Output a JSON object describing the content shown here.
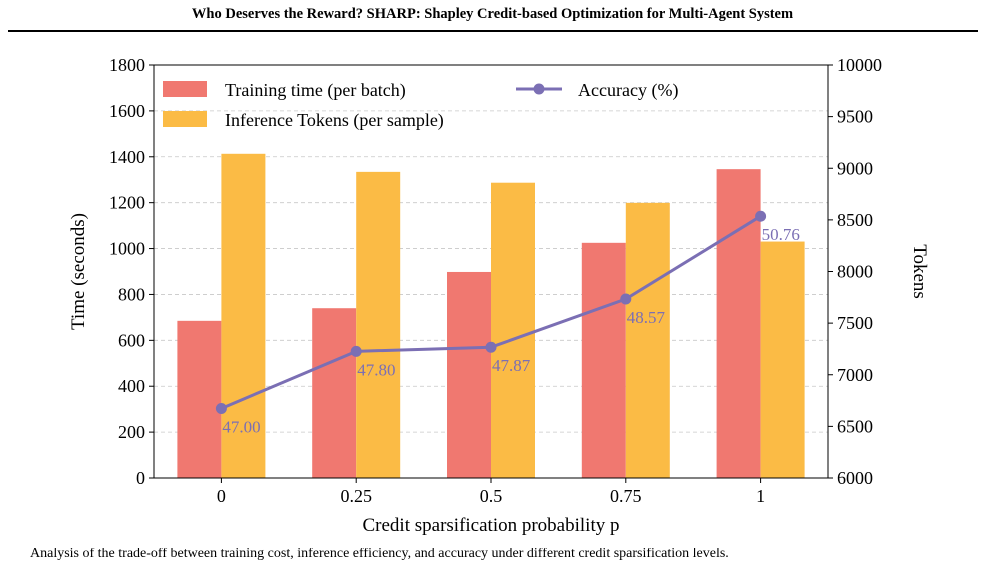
{
  "header": {
    "title": "Who Deserves the Reward? SHARP: Shapley Credit-based Optimization for Multi-Agent System"
  },
  "caption": {
    "text": "Analysis of the trade-off between training cost, inference efficiency, and accuracy under different credit sparsification levels."
  },
  "chart_data": {
    "type": "bar",
    "categories": [
      "0",
      "0.25",
      "0.5",
      "0.75",
      "1"
    ],
    "xlabel": "Credit sparsification probability p",
    "ylabel": "Time (seconds)",
    "y2label": "Tokens",
    "ylim": [
      0,
      1800
    ],
    "y2lim": [
      6000,
      10000
    ],
    "yticks": [
      0,
      200,
      400,
      600,
      800,
      1000,
      1200,
      1400,
      1600,
      1800
    ],
    "y2ticks": [
      6000,
      6500,
      7000,
      7500,
      8000,
      8500,
      9000,
      9500,
      10000
    ],
    "grid": "horizontal dashed",
    "legend_position": "top",
    "series": [
      {
        "name": "Training time (per batch)",
        "kind": "bar",
        "axis": "left",
        "color": "#F07870",
        "values": [
          685,
          740,
          898,
          1025,
          1346
        ]
      },
      {
        "name": "Inference Tokens (per sample)",
        "kind": "bar",
        "axis": "right",
        "color": "#FBBB45",
        "values": [
          9140,
          8965,
          8860,
          8665,
          8290
        ]
      },
      {
        "name": "Accuracy (%)",
        "kind": "line",
        "axis": "left",
        "color": "#7B6FB4",
        "plotted_on_left_axis": [
          303,
          552,
          570,
          780,
          1141
        ],
        "labels": [
          "47.00",
          "47.80",
          "47.87",
          "48.57",
          "50.76"
        ]
      }
    ]
  }
}
